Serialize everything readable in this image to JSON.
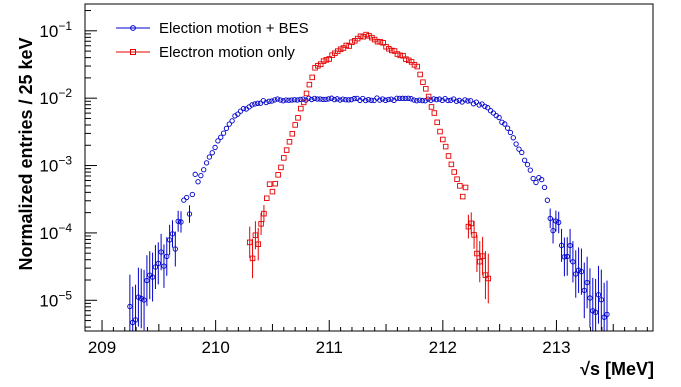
{
  "chart_data": {
    "type": "scatter",
    "title": "",
    "xlabel": "√s [MeV]",
    "ylabel": "Normalized entries / 25 keV",
    "xlim": [
      208.85,
      213.85
    ],
    "ylim": [
      3.5e-06,
      0.25
    ],
    "yscale": "log",
    "xticks": [
      {
        "value": 209,
        "label": "209"
      },
      {
        "value": 210,
        "label": "210"
      },
      {
        "value": 211,
        "label": "211"
      },
      {
        "value": 212,
        "label": "212"
      },
      {
        "value": 213,
        "label": "213"
      }
    ],
    "yticks": [
      {
        "value": 1e-05,
        "base": "10",
        "exp": "−5"
      },
      {
        "value": 0.0001,
        "base": "10",
        "exp": "−4"
      },
      {
        "value": 0.001,
        "base": "10",
        "exp": "−3"
      },
      {
        "value": 0.01,
        "base": "10",
        "exp": "−2"
      },
      {
        "value": 0.1,
        "base": "10",
        "exp": "−1"
      }
    ],
    "legend_position": "top-left",
    "series": [
      {
        "name": "Election motion + BES",
        "color": "#0000cc",
        "marker": "circle",
        "model": {
          "center": 211.33,
          "plateau": 0.0096,
          "half_width": 1.18,
          "rolloff": 0.11,
          "tail_slope_per_MeV": 12.5,
          "x_start": 209.22,
          "x_end": 213.46,
          "step": 0.025
        }
      },
      {
        "name": "Electron motion only",
        "color": "#e60000",
        "marker": "square",
        "model": {
          "center": 211.33,
          "peak": 0.092,
          "decay_per_MeV": 3.25,
          "steep_onset": 0.45,
          "steep_slope_per_MeV": 30,
          "x_start": 210.3,
          "x_end": 212.4,
          "step": 0.025
        }
      }
    ]
  }
}
